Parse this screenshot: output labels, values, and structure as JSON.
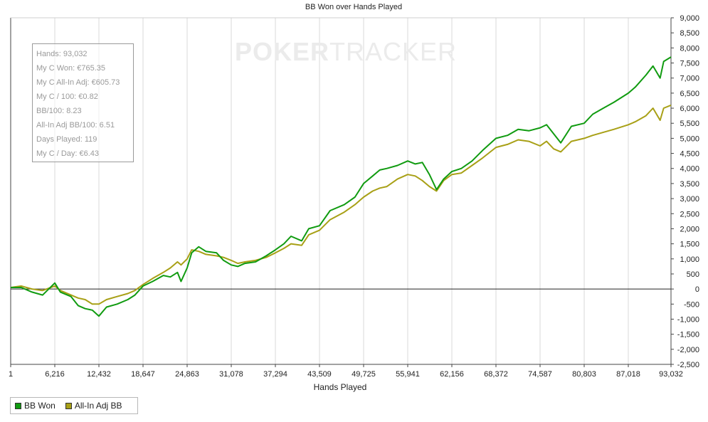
{
  "colors": {
    "bb_won": "#109b10",
    "all_in_adj": "#a8a016",
    "grid": "#d8d8d8",
    "zero_line": "#222222",
    "axis": "#444444",
    "text": "#222222",
    "watermark": "#ebebeb"
  },
  "watermark": {
    "left": "POKER",
    "right": "TRACKER"
  },
  "stats": [
    "Hands: 93,032",
    "My C Won: €765.35",
    "My C All-In Adj: €605.73",
    "My C / 100: €0.82",
    "BB/100: 8.23",
    "All-In Adj BB/100: 6.51",
    "Days Played: 119",
    "My C / Day: €6.43"
  ],
  "legend": {
    "bb_won": "BB Won",
    "all_in_adj": "All-In Adj BB"
  },
  "chart_data": {
    "type": "line",
    "title": "BB Won over Hands Played",
    "xlabel": "Hands Played",
    "ylabel": "",
    "xlim": [
      1,
      93032
    ],
    "ylim": [
      -2500,
      9000
    ],
    "x_ticks": [
      1,
      6216,
      12432,
      18647,
      24863,
      31078,
      37294,
      43509,
      49725,
      55941,
      62156,
      68372,
      74587,
      80803,
      87018,
      93032
    ],
    "x_tick_labels": [
      "1",
      "6,216",
      "12,432",
      "18,647",
      "24,863",
      "31,078",
      "37,294",
      "43,509",
      "49,725",
      "55,941",
      "62,156",
      "68,372",
      "74,587",
      "80,803",
      "87,018",
      "93,032"
    ],
    "y_ticks": [
      -2500,
      -2000,
      -1500,
      -1000,
      -500,
      0,
      500,
      1000,
      1500,
      2000,
      2500,
      3000,
      3500,
      4000,
      4500,
      5000,
      5500,
      6000,
      6500,
      7000,
      7500,
      8000,
      8500,
      9000
    ],
    "y_tick_labels": [
      "-2,500",
      "-2,000",
      "-1,500",
      "-1,000",
      "-500",
      "0",
      "500",
      "1,000",
      "1,500",
      "2,000",
      "2,500",
      "3,000",
      "3,500",
      "4,000",
      "4,500",
      "5,000",
      "5,500",
      "6,000",
      "6,500",
      "7,000",
      "7,500",
      "8,000",
      "8,500",
      "9,000"
    ],
    "y_axis_side": "right",
    "grid": "vertical",
    "legend_position": "bottom-left",
    "series": [
      {
        "name": "BB Won",
        "color_key": "bb_won",
        "x": [
          1,
          1500,
          3000,
          4500,
          6216,
          7000,
          8500,
          9500,
          10500,
          11500,
          12432,
          13500,
          15000,
          16500,
          17500,
          18647,
          20000,
          21500,
          22500,
          23500,
          24000,
          24863,
          25500,
          26500,
          27500,
          29000,
          30000,
          31078,
          32000,
          33000,
          34500,
          36000,
          37294,
          38500,
          39500,
          41000,
          42000,
          43509,
          45000,
          47000,
          48500,
          49725,
          51000,
          52000,
          53000,
          54500,
          55941,
          57000,
          58000,
          59000,
          60000,
          61000,
          62156,
          63500,
          65000,
          66500,
          68372,
          70000,
          71500,
          73000,
          74587,
          75500,
          76500,
          77500,
          79000,
          80803,
          82000,
          83500,
          85000,
          87018,
          88000,
          89500,
          90500,
          91500,
          92000,
          93032
        ],
        "y": [
          50,
          50,
          -100,
          -200,
          200,
          -100,
          -250,
          -550,
          -650,
          -700,
          -900,
          -600,
          -500,
          -350,
          -200,
          100,
          250,
          450,
          400,
          550,
          250,
          700,
          1200,
          1400,
          1250,
          1200,
          950,
          800,
          750,
          850,
          900,
          1100,
          1300,
          1500,
          1750,
          1600,
          2000,
          2100,
          2600,
          2800,
          3050,
          3500,
          3750,
          3950,
          4000,
          4100,
          4250,
          4150,
          4200,
          3800,
          3300,
          3650,
          3900,
          4000,
          4250,
          4600,
          5000,
          5100,
          5300,
          5250,
          5350,
          5450,
          5150,
          4850,
          5400,
          5500,
          5800,
          6000,
          6200,
          6500,
          6700,
          7100,
          7400,
          7000,
          7550,
          7700
        ]
      },
      {
        "name": "All-In Adj BB",
        "color_key": "all_in_adj",
        "x": [
          1,
          1500,
          3000,
          4500,
          6216,
          7000,
          8500,
          9500,
          10500,
          11500,
          12432,
          13500,
          15000,
          16500,
          17500,
          18647,
          20000,
          21500,
          22500,
          23500,
          24000,
          24863,
          25500,
          26500,
          27500,
          29000,
          30000,
          31078,
          32000,
          33000,
          34500,
          36000,
          37294,
          38500,
          39500,
          41000,
          42000,
          43509,
          45000,
          47000,
          48500,
          49725,
          51000,
          52000,
          53000,
          54500,
          55941,
          57000,
          58000,
          59000,
          60000,
          61000,
          62156,
          63500,
          65000,
          66500,
          68372,
          70000,
          71500,
          73000,
          74587,
          75500,
          76500,
          77500,
          79000,
          80803,
          82000,
          83500,
          85000,
          87018,
          88000,
          89500,
          90500,
          91500,
          92000,
          93032
        ],
        "y": [
          50,
          100,
          0,
          -50,
          100,
          -50,
          -200,
          -300,
          -350,
          -500,
          -500,
          -350,
          -250,
          -150,
          -50,
          150,
          350,
          550,
          700,
          900,
          800,
          1000,
          1300,
          1250,
          1150,
          1100,
          1050,
          950,
          850,
          900,
          950,
          1050,
          1200,
          1350,
          1500,
          1450,
          1800,
          1950,
          2300,
          2550,
          2800,
          3050,
          3250,
          3350,
          3400,
          3650,
          3800,
          3750,
          3600,
          3400,
          3250,
          3600,
          3800,
          3850,
          4100,
          4350,
          4700,
          4800,
          4950,
          4900,
          4750,
          4900,
          4650,
          4550,
          4900,
          5000,
          5100,
          5200,
          5300,
          5450,
          5550,
          5750,
          6000,
          5600,
          6000,
          6100
        ]
      }
    ]
  }
}
